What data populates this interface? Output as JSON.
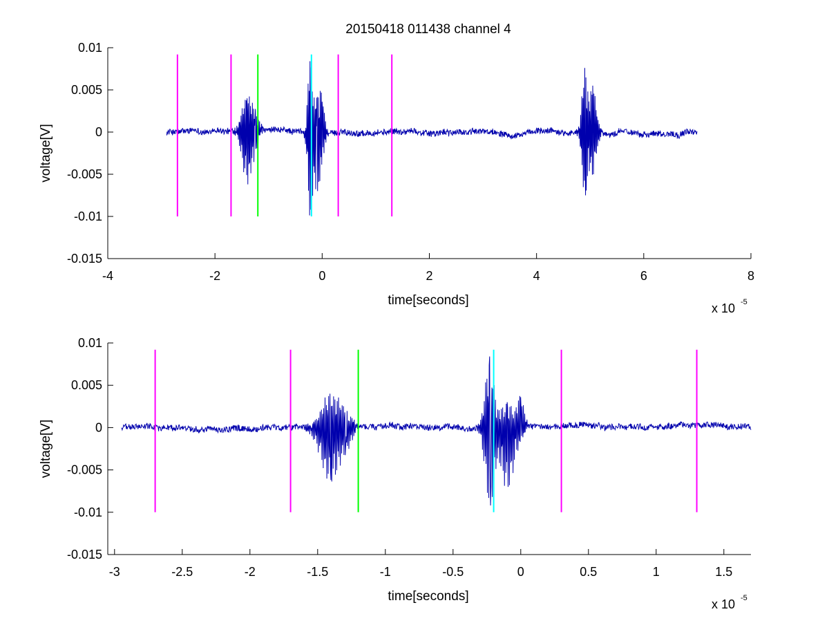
{
  "title": "20150418 011438 channel 4",
  "colors": {
    "signal": "#0000ad",
    "marker": "#ff00ff",
    "trigger": "#00ff00",
    "peak": "#00ffff",
    "axis": "#000000",
    "background": "#ffffff"
  },
  "chart_data": [
    {
      "type": "line",
      "title": "20150418 011438 channel 4",
      "xlabel": "time[seconds]",
      "ylabel": "voltage[V]",
      "x_exponent_label": "x 10",
      "x_exponent": "-5",
      "x_scale": 1e-05,
      "xlim": [
        -4,
        8
      ],
      "ylim": [
        -0.015,
        0.01
      ],
      "xticks": [
        -4,
        -2,
        0,
        2,
        4,
        6,
        8
      ],
      "xtick_labels": [
        "-4",
        "-2",
        "0",
        "2",
        "4",
        "6",
        "8"
      ],
      "yticks": [
        0.01,
        0.005,
        0,
        -0.005,
        -0.01,
        -0.015
      ],
      "ytick_labels": [
        "0.01",
        "0.005",
        "0",
        "-0.005",
        "-0.01",
        "-0.015"
      ],
      "grid": false,
      "signal_range": [
        -2.9,
        7.0
      ],
      "bursts": [
        {
          "t": -1.4,
          "amp": 0.004,
          "neg": -0.0062,
          "width": 0.14
        },
        {
          "t": -1.25,
          "amp": 0.0018,
          "neg": -0.002,
          "width": 0.1
        },
        {
          "t": -0.23,
          "amp": 0.0084,
          "neg": -0.0092,
          "width": 0.06
        },
        {
          "t": -0.1,
          "amp": 0.004,
          "neg": -0.007,
          "width": 0.12
        },
        {
          "t": 0.0,
          "amp": 0.0036,
          "neg": -0.0018,
          "width": 0.06
        },
        {
          "t": 4.9,
          "amp": 0.0076,
          "neg": -0.0075,
          "width": 0.08
        },
        {
          "t": 5.05,
          "amp": 0.0055,
          "neg": -0.005,
          "width": 0.1
        }
      ],
      "vlines": [
        {
          "x": -2.7,
          "kind": "marker",
          "y": [
            -0.01,
            0.0092
          ]
        },
        {
          "x": -1.7,
          "kind": "marker",
          "y": [
            -0.01,
            0.0092
          ]
        },
        {
          "x": -1.2,
          "kind": "trigger",
          "y": [
            -0.01,
            0.0092
          ]
        },
        {
          "x": -0.2,
          "kind": "peak",
          "y": [
            -0.01,
            0.0092
          ]
        },
        {
          "x": 0.3,
          "kind": "marker",
          "y": [
            -0.01,
            0.0092
          ]
        },
        {
          "x": 1.3,
          "kind": "marker",
          "y": [
            -0.01,
            0.0092
          ]
        }
      ]
    },
    {
      "type": "line",
      "title": "",
      "xlabel": "time[seconds]",
      "ylabel": "voltage[V]",
      "x_exponent_label": "x 10",
      "x_exponent": "-5",
      "x_scale": 1e-05,
      "xlim": [
        -3.05,
        1.7
      ],
      "ylim": [
        -0.015,
        0.01
      ],
      "xticks": [
        -3,
        -2.5,
        -2,
        -1.5,
        -1,
        -0.5,
        0,
        0.5,
        1,
        1.5
      ],
      "xtick_labels": [
        "-3",
        "-2.5",
        "-2",
        "-1.5",
        "-1",
        "-0.5",
        "0",
        "0.5",
        "1",
        "1.5"
      ],
      "yticks": [
        0.01,
        0.005,
        0,
        -0.005,
        -0.01,
        -0.015
      ],
      "ytick_labels": [
        "0.01",
        "0.005",
        "0",
        "-0.005",
        "-0.01",
        "-0.015"
      ],
      "grid": false,
      "signal_range": [
        -2.95,
        1.7
      ],
      "bursts": [
        {
          "t": -1.41,
          "amp": 0.004,
          "neg": -0.0062,
          "width": 0.1
        },
        {
          "t": -1.3,
          "amp": 0.0018,
          "neg": -0.0022,
          "width": 0.08
        },
        {
          "t": -0.23,
          "amp": 0.0084,
          "neg": -0.0092,
          "width": 0.05
        },
        {
          "t": -0.1,
          "amp": 0.003,
          "neg": -0.007,
          "width": 0.08
        },
        {
          "t": 0.0,
          "amp": 0.0036,
          "neg": -0.001,
          "width": 0.04
        }
      ],
      "vlines": [
        {
          "x": -2.7,
          "kind": "marker",
          "y": [
            -0.01,
            0.0092
          ]
        },
        {
          "x": -1.7,
          "kind": "marker",
          "y": [
            -0.01,
            0.0092
          ]
        },
        {
          "x": -1.2,
          "kind": "trigger",
          "y": [
            -0.01,
            0.0092
          ]
        },
        {
          "x": -0.2,
          "kind": "peak",
          "y": [
            -0.01,
            0.0092
          ]
        },
        {
          "x": 0.3,
          "kind": "marker",
          "y": [
            -0.01,
            0.0092
          ]
        },
        {
          "x": 1.3,
          "kind": "marker",
          "y": [
            -0.01,
            0.0092
          ]
        }
      ]
    }
  ]
}
